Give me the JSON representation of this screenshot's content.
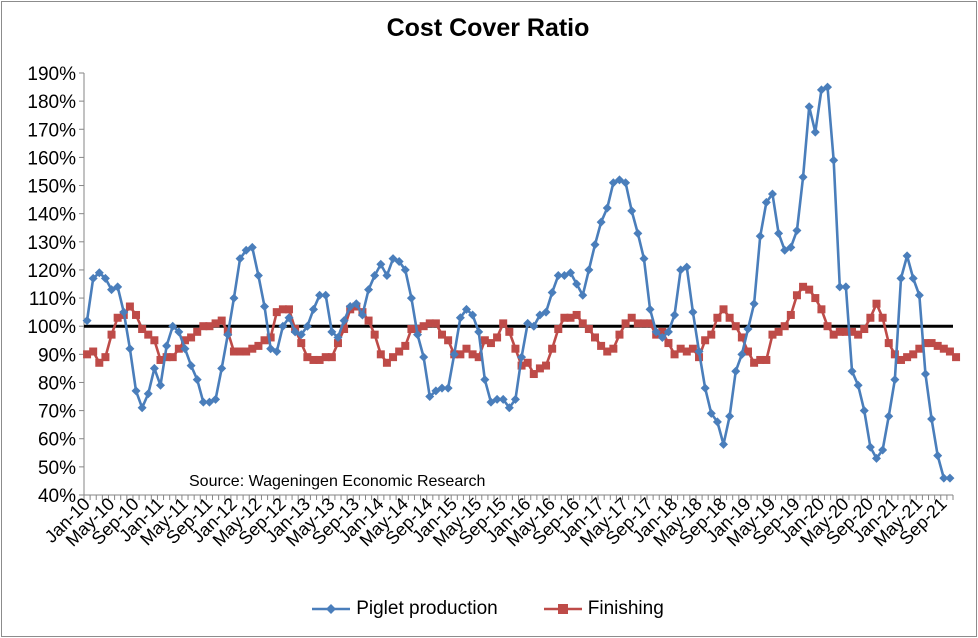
{
  "chart_data": {
    "type": "line",
    "title": "Cost Cover Ratio",
    "annotation": "Source: Wageningen Economic Research",
    "y_ticks": [
      "40%",
      "50%",
      "60%",
      "70%",
      "80%",
      "90%",
      "100%",
      "110%",
      "120%",
      "130%",
      "140%",
      "150%",
      "160%",
      "170%",
      "180%",
      "190%"
    ],
    "ylim": [
      40,
      190
    ],
    "x_tick_labels": [
      "Jan-10",
      "May-10",
      "Sep-10",
      "Jan-11",
      "May-11",
      "Sep-11",
      "Jan-12",
      "May-12",
      "Sep-12",
      "Jan-13",
      "May-13",
      "Sep-13",
      "Jan-14",
      "May-14",
      "Sep-14",
      "Jan-15",
      "May-15",
      "Sep-15",
      "Jan-16",
      "May-16",
      "Sep-16",
      "Jan-17",
      "May-17",
      "Sep-17",
      "Jan-18",
      "May-18",
      "Sep-18",
      "Jan-19",
      "May-19",
      "Sep-19",
      "Jan-20",
      "May-20",
      "Sep-20",
      "Jan-21",
      "May-21",
      "Sep-21"
    ],
    "reference_line": 100,
    "colors": {
      "piglet": "#4a7ebb",
      "finishing": "#be4b48",
      "reference": "#000000"
    },
    "series": [
      {
        "name": "Piglet production",
        "marker": "diamond",
        "values": [
          102,
          117,
          119,
          117,
          113,
          114,
          105,
          92,
          77,
          71,
          76,
          85,
          79,
          93,
          100,
          98,
          92,
          86,
          81,
          73,
          73,
          74,
          85,
          97,
          110,
          124,
          127,
          128,
          118,
          107,
          92,
          91,
          100,
          103,
          98,
          97,
          100,
          106,
          111,
          111,
          98,
          96,
          102,
          107,
          108,
          104,
          113,
          118,
          122,
          118,
          124,
          123,
          120,
          110,
          97,
          89,
          75,
          77,
          78,
          78,
          90,
          103,
          106,
          104,
          98,
          81,
          73,
          74,
          74,
          71,
          74,
          89,
          101,
          100,
          104,
          105,
          112,
          118,
          118,
          119,
          115,
          111,
          120,
          129,
          137,
          142,
          151,
          152,
          151,
          141,
          133,
          124,
          106,
          98,
          96,
          98,
          104,
          120,
          121,
          105,
          91,
          78,
          69,
          66,
          58,
          68,
          84,
          90,
          99,
          108,
          132,
          144,
          147,
          133,
          127,
          128,
          134,
          153,
          178,
          169,
          184,
          185,
          159,
          114,
          114,
          84,
          79,
          70,
          57,
          53,
          56,
          68,
          81,
          117,
          125,
          117,
          111,
          83,
          67,
          54,
          46,
          46
        ]
      },
      {
        "name": "Finishing",
        "marker": "square",
        "values": [
          90,
          91,
          87,
          89,
          97,
          103,
          104,
          107,
          104,
          99,
          97,
          95,
          88,
          89,
          89,
          92,
          95,
          96,
          98,
          100,
          100,
          101,
          102,
          98,
          91,
          91,
          91,
          92,
          93,
          95,
          96,
          105,
          106,
          106,
          99,
          94,
          89,
          88,
          88,
          89,
          89,
          94,
          99,
          106,
          107,
          105,
          102,
          97,
          90,
          87,
          89,
          91,
          93,
          99,
          99,
          100,
          101,
          101,
          97,
          95,
          90,
          90,
          92,
          90,
          89,
          95,
          94,
          96,
          101,
          98,
          92,
          86,
          87,
          83,
          85,
          86,
          92,
          99,
          103,
          103,
          104,
          101,
          99,
          96,
          93,
          91,
          92,
          97,
          101,
          103,
          101,
          101,
          101,
          97,
          98,
          94,
          90,
          92,
          91,
          92,
          89,
          95,
          97,
          103,
          106,
          103,
          100,
          96,
          91,
          87,
          88,
          88,
          97,
          98,
          100,
          104,
          111,
          114,
          113,
          110,
          106,
          100,
          97,
          98,
          98,
          98,
          97,
          99,
          103,
          108,
          103,
          94,
          90,
          88,
          89,
          90,
          92,
          94,
          94,
          93,
          92,
          91,
          89
        ]
      }
    ]
  },
  "legend": {
    "piglet_label": "Piglet production",
    "finishing_label": "Finishing"
  }
}
